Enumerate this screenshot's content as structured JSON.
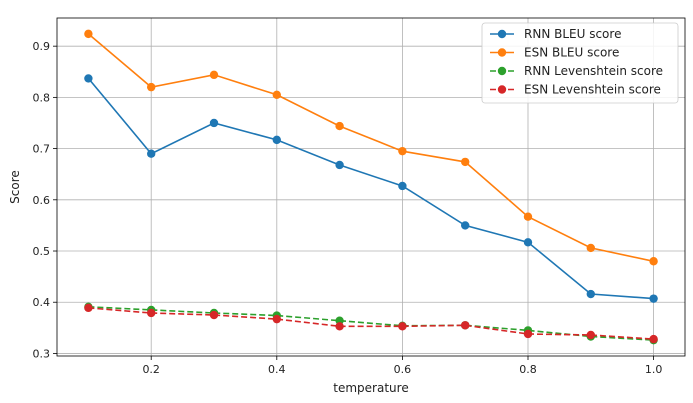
{
  "chart_data": {
    "type": "line",
    "xlabel": "temperature",
    "ylabel": "Score",
    "xlim": [
      0.05,
      1.05
    ],
    "ylim": [
      0.295,
      0.955
    ],
    "xticks": [
      0.2,
      0.4,
      0.6,
      0.8,
      1.0
    ],
    "xtick_labels": [
      "0.2",
      "0.4",
      "0.6",
      "0.8",
      "1.0"
    ],
    "yticks": [
      0.3,
      0.4,
      0.5,
      0.6,
      0.7,
      0.8,
      0.9
    ],
    "ytick_labels": [
      "0.3",
      "0.4",
      "0.5",
      "0.6",
      "0.7",
      "0.8",
      "0.9"
    ],
    "grid": true,
    "legend_position": "top-right",
    "x": [
      0.1,
      0.2,
      0.3,
      0.4,
      0.5,
      0.6,
      0.7,
      0.8,
      0.9,
      1.0
    ],
    "series": [
      {
        "name": "RNN BLEU score",
        "color": "#1f77b4",
        "linestyle": "solid",
        "values": [
          0.837,
          0.69,
          0.75,
          0.717,
          0.668,
          0.627,
          0.55,
          0.517,
          0.416,
          0.407
        ]
      },
      {
        "name": "ESN BLEU score",
        "color": "#ff7f0e",
        "linestyle": "solid",
        "values": [
          0.924,
          0.82,
          0.844,
          0.805,
          0.744,
          0.695,
          0.674,
          0.567,
          0.506,
          0.48
        ]
      },
      {
        "name": "RNN Levenshtein score",
        "color": "#2ca02c",
        "linestyle": "dashed",
        "values": [
          0.391,
          0.385,
          0.379,
          0.374,
          0.364,
          0.354,
          0.355,
          0.345,
          0.333,
          0.326
        ]
      },
      {
        "name": "ESN Levenshtein score",
        "color": "#d62728",
        "linestyle": "dashed",
        "values": [
          0.389,
          0.379,
          0.375,
          0.367,
          0.353,
          0.353,
          0.355,
          0.338,
          0.336,
          0.328
        ]
      }
    ]
  }
}
